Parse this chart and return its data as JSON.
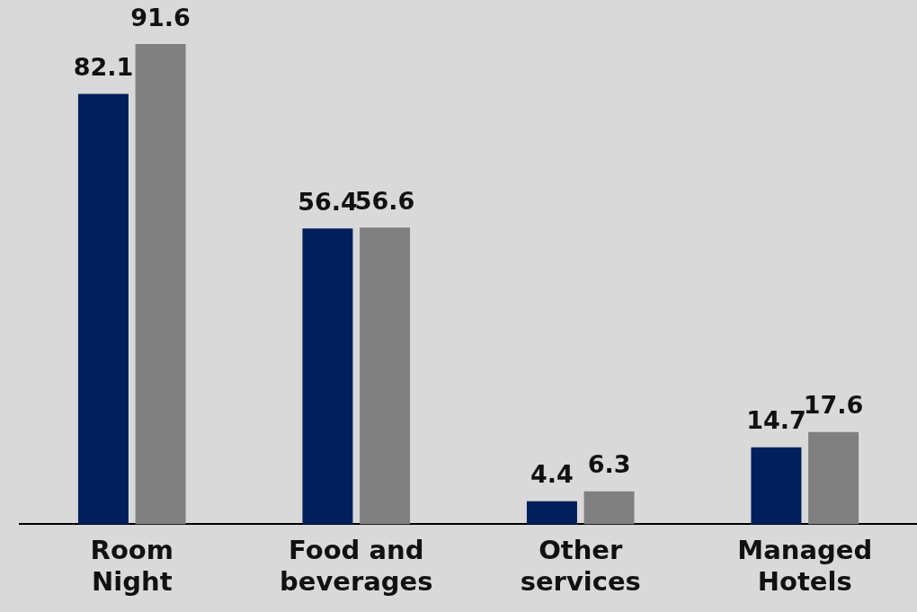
{
  "chart_data": {
    "type": "bar",
    "categories": [
      "Room Night",
      "Food and beverages",
      "Other services",
      "Managed Hotels"
    ],
    "series": [
      {
        "color": "#001f5b",
        "values": [
          82.1,
          56.4,
          4.4,
          14.7
        ]
      },
      {
        "color": "#808080",
        "values": [
          91.6,
          56.6,
          6.3,
          17.6
        ]
      }
    ],
    "data_labels": true,
    "legend": false,
    "grid": false
  }
}
